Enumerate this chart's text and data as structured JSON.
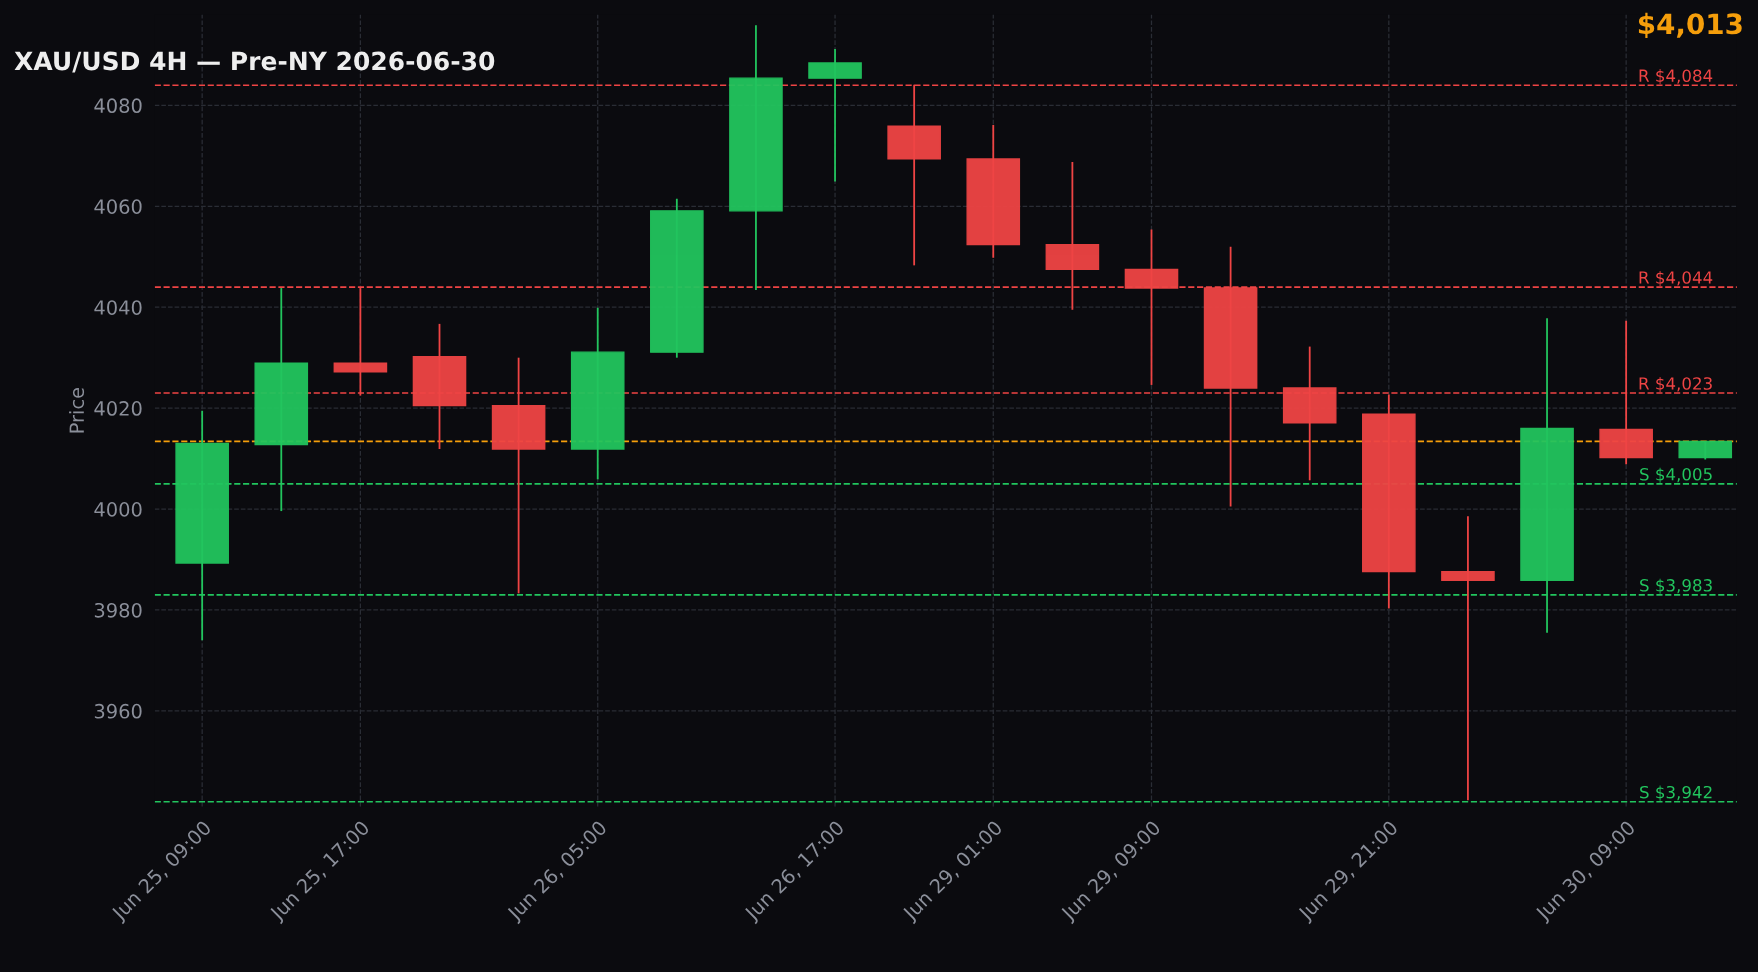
{
  "chart_data": {
    "type": "candlestick",
    "title": "XAU/USD 4H — Pre-NY 2026-06-30",
    "ylabel": "Price",
    "annotations": [
      "$4,013"
    ],
    "categories": [
      "Jun 25, 09:00",
      null,
      "Jun 25, 17:00",
      null,
      null,
      "Jun 26, 05:00",
      null,
      null,
      "Jun 26, 17:00",
      null,
      "Jun 29, 01:00",
      null,
      "Jun 29, 09:00",
      null,
      null,
      "Jun 29, 21:00",
      null,
      null,
      "Jun 30, 09:00",
      null
    ],
    "ohlc": [
      [
        3989.3,
        4019.5,
        3974,
        4013
      ],
      [
        4012.8,
        4043.8,
        3999.6,
        4028.9
      ],
      [
        4028.9,
        4043.8,
        4022.5,
        4027.2
      ],
      [
        4030.2,
        4036.7,
        4011.9,
        4020.5
      ],
      [
        4020.5,
        4030,
        3983.3,
        4011.9
      ],
      [
        4011.9,
        4039.9,
        4005.9,
        4031.1
      ],
      [
        4031.1,
        4061.5,
        4030,
        4059.1
      ],
      [
        4059.1,
        4095.9,
        4043.4,
        4085.4
      ],
      [
        4085.4,
        4091.2,
        4064.9,
        4088.4
      ],
      [
        4075.9,
        4084.1,
        4048.3,
        4069.4
      ],
      [
        4069.4,
        4076.1,
        4049.8,
        4052.4
      ],
      [
        4052.4,
        4068.8,
        4039.5,
        4047.5
      ],
      [
        4047.5,
        4055.4,
        4024.6,
        4043.8
      ],
      [
        4043.8,
        4052,
        4000.5,
        4024
      ],
      [
        4024,
        4032.2,
        4005.7,
        4017.1
      ],
      [
        4018.8,
        4022.7,
        3980.3,
        3987.6
      ],
      [
        3987.6,
        3998.6,
        3942.3,
        3985.9
      ],
      [
        3985.9,
        4037.8,
        3975.5,
        4016
      ],
      [
        4015.8,
        4037.3,
        4008.9,
        4010.2
      ],
      [
        4010.2,
        4013.4,
        4009.8,
        4013.4
      ]
    ],
    "colors": [
      "#22c55e",
      "#22c55e",
      "#ef4444",
      "#ef4444",
      "#ef4444",
      "#22c55e",
      "#22c55e",
      "#22c55e",
      "#22c55e",
      "#ef4444",
      "#ef4444",
      "#ef4444",
      "#ef4444",
      "#ef4444",
      "#ef4444",
      "#ef4444",
      "#ef4444",
      "#22c55e",
      "#ef4444",
      "#22c55e"
    ],
    "ylim": [
      3941,
      4098
    ],
    "yticks": [
      3960,
      3980,
      4000,
      4020,
      4040,
      4060,
      4080
    ],
    "grid": true,
    "ref_lines": [
      {
        "axis": "y",
        "value": 4084,
        "label": "R $4,084",
        "color": "#ef4444",
        "line_style": "dashed"
      },
      {
        "axis": "y",
        "value": 4044,
        "label": "R $4,044",
        "color": "#ef4444",
        "line_style": "dashed"
      },
      {
        "axis": "y",
        "value": 4023,
        "label": "R $4,023",
        "color": "#ef4444",
        "line_style": "dashed"
      },
      {
        "axis": "y",
        "value": 4013.4,
        "label": null,
        "color": "#f59e0b",
        "line_style": "dashed"
      },
      {
        "axis": "y",
        "value": 4005,
        "label": "S $4,005",
        "color": "#22c55e",
        "line_style": "dashed"
      },
      {
        "axis": "y",
        "value": 3983,
        "label": "S $3,983",
        "color": "#22c55e",
        "line_style": "dashed"
      },
      {
        "axis": "y",
        "value": 3942,
        "label": "S $3,942",
        "color": "#22c55e",
        "line_style": "dashed"
      }
    ]
  }
}
